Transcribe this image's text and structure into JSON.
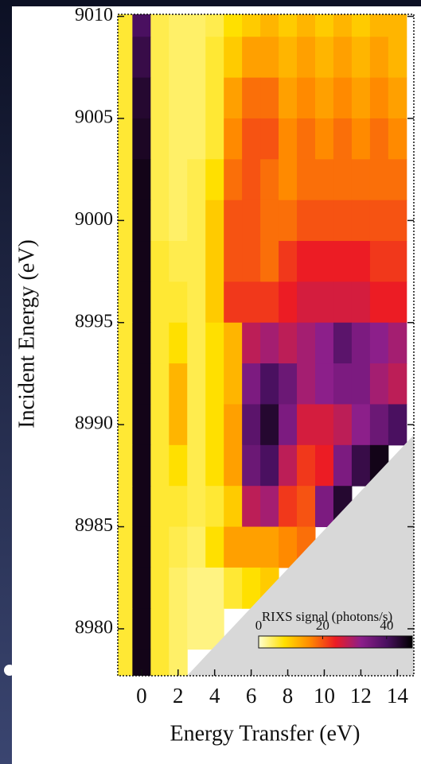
{
  "chart_data": {
    "type": "heatmap",
    "x_label": "Energy Transfer (eV)",
    "y_label": "Incident Energy (eV)",
    "colorbar_label": "RIXS signal (photons/s)",
    "x": [
      -1,
      0,
      1,
      2,
      3,
      4,
      5,
      6,
      7,
      8,
      9,
      10,
      11,
      12,
      13,
      14
    ],
    "y": [
      9010,
      9008,
      9006,
      9004,
      9002,
      9000,
      8998,
      8996,
      8994,
      8992,
      8990,
      8988,
      8986,
      8984,
      8982,
      8980,
      8978
    ],
    "values": [
      [
        6,
        40,
        5,
        4,
        4,
        5,
        8,
        10,
        12,
        10,
        12,
        10,
        12,
        10,
        12,
        12
      ],
      [
        6,
        42,
        5,
        4,
        4,
        6,
        10,
        14,
        14,
        12,
        14,
        12,
        14,
        12,
        14,
        12
      ],
      [
        6,
        44,
        5,
        4,
        4,
        6,
        14,
        18,
        18,
        14,
        16,
        14,
        16,
        14,
        16,
        14
      ],
      [
        6,
        45,
        5,
        4,
        4,
        6,
        16,
        20,
        20,
        16,
        18,
        16,
        18,
        16,
        18,
        16
      ],
      [
        6,
        46,
        5,
        4,
        5,
        8,
        18,
        20,
        18,
        16,
        18,
        18,
        18,
        18,
        18,
        18
      ],
      [
        6,
        46,
        5,
        4,
        5,
        10,
        20,
        20,
        18,
        18,
        20,
        20,
        20,
        20,
        20,
        20
      ],
      [
        6,
        46,
        6,
        5,
        5,
        10,
        20,
        20,
        18,
        22,
        24,
        24,
        24,
        24,
        22,
        22
      ],
      [
        6,
        46,
        6,
        6,
        5,
        10,
        22,
        22,
        22,
        24,
        26,
        26,
        26,
        26,
        24,
        24
      ],
      [
        6,
        46,
        6,
        8,
        5,
        8,
        12,
        28,
        30,
        28,
        30,
        32,
        38,
        34,
        32,
        30
      ],
      [
        6,
        46,
        6,
        12,
        5,
        8,
        12,
        34,
        40,
        36,
        30,
        32,
        34,
        34,
        30,
        28
      ],
      [
        6,
        46,
        6,
        12,
        5,
        8,
        14,
        38,
        44,
        34,
        26,
        26,
        28,
        32,
        36,
        40
      ],
      [
        6,
        46,
        6,
        8,
        5,
        8,
        14,
        36,
        40,
        28,
        22,
        24,
        34,
        42,
        46,
        null
      ],
      [
        6,
        46,
        6,
        6,
        5,
        6,
        10,
        28,
        30,
        22,
        20,
        34,
        44,
        null,
        null,
        null
      ],
      [
        6,
        46,
        6,
        5,
        4,
        8,
        14,
        14,
        14,
        16,
        18,
        null,
        null,
        null,
        null,
        null
      ],
      [
        6,
        46,
        6,
        4,
        3,
        3,
        6,
        8,
        10,
        null,
        null,
        null,
        null,
        null,
        null,
        null
      ],
      [
        6,
        46,
        6,
        4,
        3,
        3,
        null,
        null,
        null,
        null,
        null,
        null,
        null,
        null,
        null,
        null
      ],
      [
        6,
        46,
        6,
        4,
        null,
        null,
        null,
        null,
        null,
        null,
        null,
        null,
        null,
        null,
        null,
        null
      ]
    ],
    "colors": [
      "#ffffd0",
      "#ffe000",
      "#ff8a00",
      "#ec1c24",
      "#8c1f8a",
      "#4a1060",
      "#000000"
    ],
    "zlim": [
      0,
      48
    ],
    "zticks": [
      0,
      20,
      40
    ],
    "xlim": [
      -1.3,
      14.9
    ],
    "ylim": [
      8977.7,
      9010.1
    ],
    "xticks": [
      0,
      2,
      4,
      6,
      8,
      10,
      12,
      14
    ],
    "yticks": [
      8980,
      8985,
      8990,
      8995,
      9000,
      9005,
      9010
    ]
  }
}
